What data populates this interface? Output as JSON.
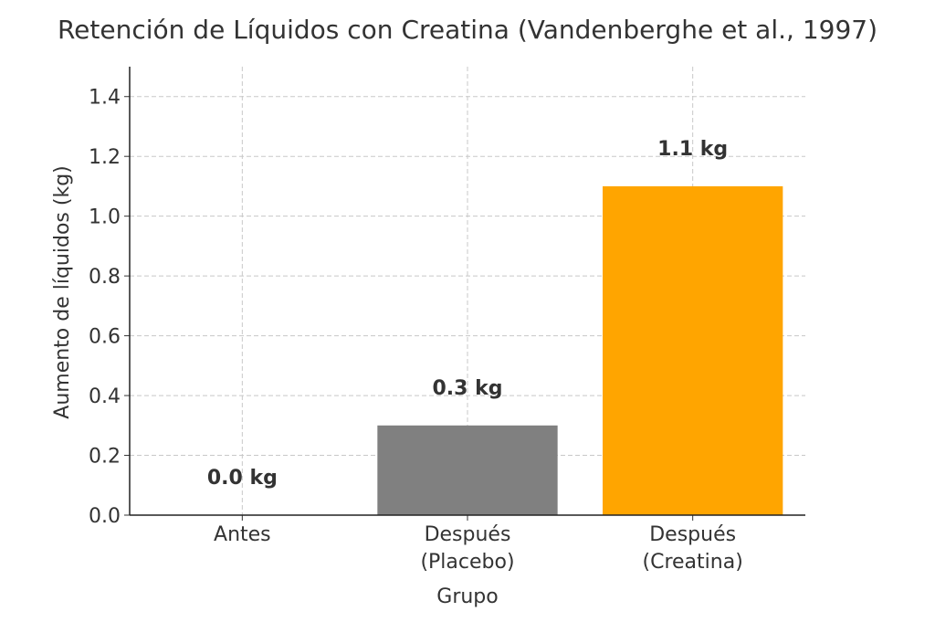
{
  "chart_data": {
    "type": "bar",
    "title": "Retención de Líquidos con Creatina (Vandenberghe et al., 1997)",
    "xlabel": "Grupo",
    "ylabel": "Aumento de líquidos (kg)",
    "categories": [
      "Antes",
      "Después\n(Placebo)",
      "Después\n(Creatina)"
    ],
    "values": [
      0.0,
      0.3,
      1.1
    ],
    "value_labels": [
      "0.0 kg",
      "0.3 kg",
      "1.1 kg"
    ],
    "colors": [
      "#808080",
      "#808080",
      "#ffa500"
    ],
    "ylim": [
      0,
      1.5
    ],
    "yticks": [
      {
        "value": 0,
        "label": "0.0"
      },
      {
        "value": 0.2,
        "label": "0.2"
      },
      {
        "value": 0.4,
        "label": "0.4"
      },
      {
        "value": 0.6,
        "label": "0.6"
      },
      {
        "value": 0.8,
        "label": "0.8"
      },
      {
        "value": 1.0,
        "label": "1.0"
      },
      {
        "value": 1.2,
        "label": "1.2"
      },
      {
        "value": 1.4,
        "label": "1.4"
      }
    ],
    "grid": true
  }
}
